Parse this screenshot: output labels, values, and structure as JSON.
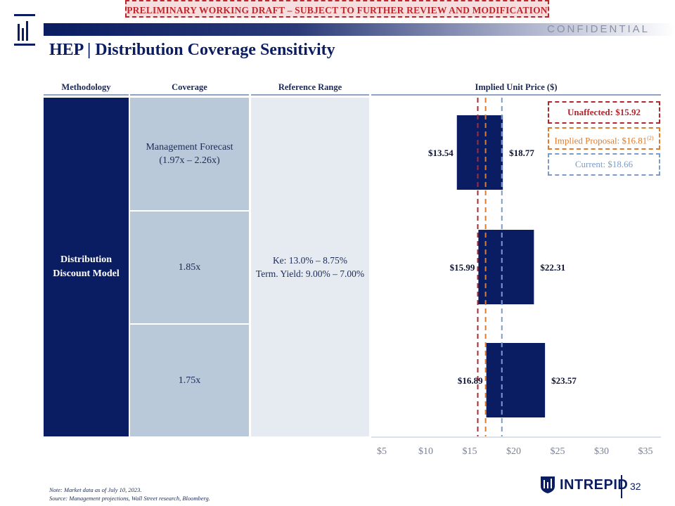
{
  "banner": "PRELIMINARY WORKING DRAFT – SUBJECT TO FURTHER REVIEW AND MODIFICATION",
  "confidential": "CONFIDENTIAL",
  "title": "HEP | Distribution Coverage Sensitivity",
  "columns": {
    "methodology": "Methodology",
    "coverage": "Coverage",
    "reference_range": "Reference Range",
    "implied_price": "Implied Unit Price ($)"
  },
  "methodology_label": [
    "Distribution",
    "Discount Model"
  ],
  "coverage_rows": [
    {
      "line1": "Management Forecast",
      "line2": "(1.97x – 2.26x)"
    },
    {
      "line1": "1.85x",
      "line2": ""
    },
    {
      "line1": "1.75x",
      "line2": ""
    }
  ],
  "reference_range": {
    "line1": "Ke: 13.0% – 8.75%",
    "line2": "Term. Yield: 9.00% – 7.00%"
  },
  "chart_data": {
    "type": "bar",
    "orientation": "horizontal-floating",
    "categories": [
      "Management Forecast (1.97x – 2.26x)",
      "1.85x",
      "1.75x"
    ],
    "series": [
      {
        "low": 13.54,
        "high": 18.77,
        "low_label": "$13.54",
        "high_label": "$18.77"
      },
      {
        "low": 15.99,
        "high": 22.31,
        "low_label": "$15.99",
        "high_label": "$22.31"
      },
      {
        "low": 16.89,
        "high": 23.57,
        "low_label": "$16.89",
        "high_label": "$23.57"
      }
    ],
    "xlim": [
      5,
      35
    ],
    "ticks": [
      5,
      10,
      15,
      20,
      25,
      30,
      35
    ],
    "tick_labels": [
      "$5",
      "$10",
      "$15",
      "$20",
      "$25",
      "$30",
      "$35"
    ],
    "reference_lines": [
      {
        "label": "Unaffected: $15.92",
        "value": 15.92,
        "color": "#b3262d"
      },
      {
        "label": "Implied Proposal:  $16.81",
        "superscript": "(2)",
        "value": 16.81,
        "color": "#e07b2a"
      },
      {
        "label": "Current: $18.66",
        "value": 18.66,
        "color": "#7d9bc8"
      }
    ],
    "bar_color": "#0a1d62",
    "legend_position": "top-right"
  },
  "notes": [
    "Note: Market data as of July 10, 2023.",
    "Source: Management projections, Wall Street research, Bloomberg."
  ],
  "brand": "INTREPID",
  "page_number": "32"
}
